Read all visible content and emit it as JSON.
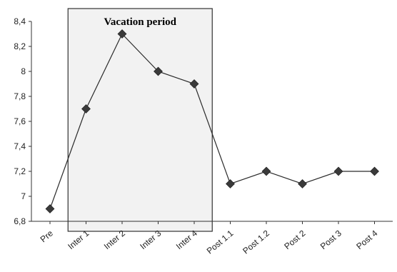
{
  "chart_data": {
    "type": "line",
    "title": "",
    "xlabel": "",
    "ylabel": "",
    "categories": [
      "Pre",
      "Inter 1",
      "Inter 2",
      "Inter 3",
      "Inter 4",
      "Post 1.1",
      "Post 1.2",
      "Post 2",
      "Post 3",
      "Post 4"
    ],
    "ylim": [
      6.8,
      8.4
    ],
    "yticks": [
      "6,8",
      "7",
      "7,2",
      "7,4",
      "7,6",
      "7,8",
      "8",
      "8,2",
      "8,4"
    ],
    "grid": false,
    "series": [
      {
        "values": [
          6.9,
          7.7,
          8.3,
          8.0,
          7.9,
          7.1,
          7.2,
          7.1,
          7.2,
          7.2
        ]
      }
    ],
    "annotation": {
      "label": "Vacation period",
      "from_category": "Inter 1",
      "to_category": "Inter 4"
    },
    "colors": {
      "line": "#2a2a2a",
      "marker": "#3a3a3a",
      "shade": "#f2f2f2"
    },
    "marker": "diamond"
  }
}
